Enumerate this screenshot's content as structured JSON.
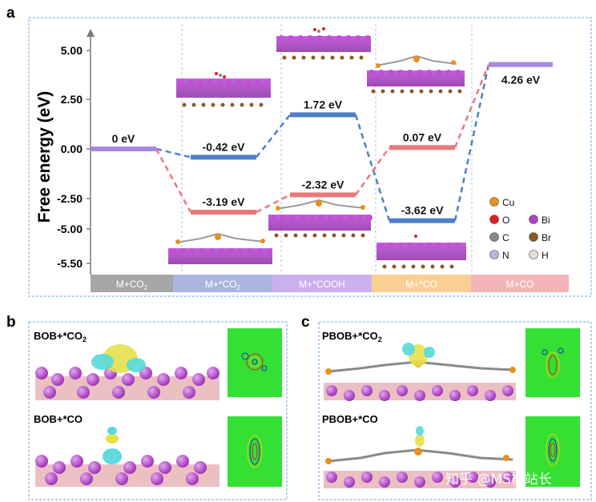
{
  "panels": {
    "a": "a",
    "b": "b",
    "c": "c"
  },
  "chart_data": {
    "type": "line",
    "title": "",
    "ylabel": "Free energy (eV)",
    "xlabel": "",
    "ylim": [
      -6.0,
      6.0
    ],
    "yticks": [
      "5.00",
      "2.50",
      "0.00",
      "-2.50",
      "-5.00",
      "-5.50"
    ],
    "categories": [
      {
        "base": "M+CO",
        "sub": "2",
        "color": "#a6a6a6"
      },
      {
        "base": "M+*CO",
        "sub": "2",
        "color": "#aab5e0"
      },
      {
        "base": "M+*COOH",
        "sub": "",
        "color": "#ccb0ee"
      },
      {
        "base": "M+*CO",
        "sub": "",
        "color": "#f9cf94"
      },
      {
        "base": "M+CO",
        "sub": "",
        "color": "#f4b5b8"
      }
    ],
    "series": [
      {
        "name": "blue pathway",
        "color": "#4f7fc6",
        "values": [
          0,
          -0.42,
          1.72,
          -3.62,
          4.26
        ],
        "labels": [
          "0 eV",
          "-0.42 eV",
          "1.72 eV",
          "-3.62 eV",
          "4.26 eV"
        ],
        "level_colors": [
          "#a58ae0",
          "#4f7fc6",
          "#4f7fc6",
          "#4f7fc6",
          "#a58ae0"
        ]
      },
      {
        "name": "red pathway",
        "color": "#e8797b",
        "values": [
          0,
          -3.19,
          -2.32,
          0.07,
          4.26
        ],
        "labels": [
          "",
          "-3.19 eV",
          "-2.32 eV",
          "0.07 eV",
          ""
        ],
        "level_colors": [
          "#a58ae0",
          "#e8797b",
          "#e8797b",
          "#e8797b",
          "#a58ae0"
        ]
      }
    ],
    "legend": {
      "position": "bottom-right",
      "items": [
        {
          "label": "Cu",
          "color": "#e8901c"
        },
        {
          "label": "O",
          "color": "#e02020"
        },
        {
          "label": "Bi",
          "color": "#b040c8"
        },
        {
          "label": "C",
          "color": "#888888"
        },
        {
          "label": "Br",
          "color": "#8a5a2a"
        },
        {
          "label": "N",
          "color": "#b4b8dc"
        },
        {
          "label": "H",
          "color": "#e8ddd2"
        }
      ]
    }
  },
  "subpanels": {
    "b_top": {
      "base": "BOB+*CO",
      "sub": "2"
    },
    "b_bottom": {
      "base": "BOB+*CO",
      "sub": ""
    },
    "c_top": {
      "base": "PBOB+*CO",
      "sub": "2"
    },
    "c_bottom": {
      "base": "PBOB+*CO",
      "sub": ""
    }
  },
  "watermark": "知乎 @MS杨站长"
}
